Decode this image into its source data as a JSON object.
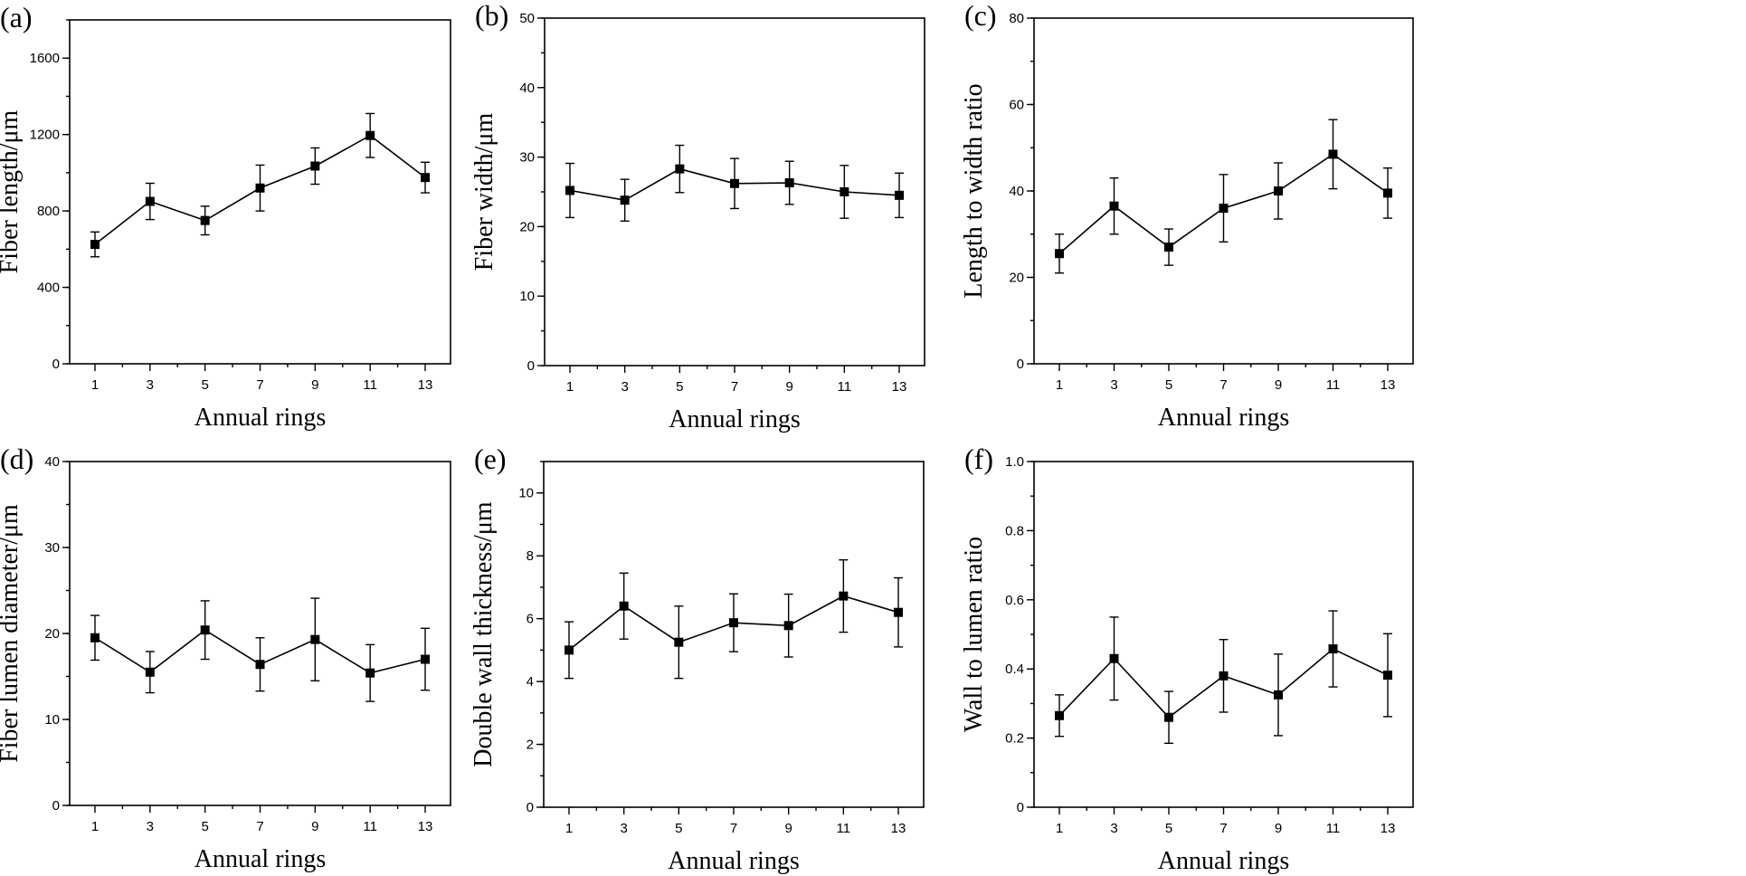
{
  "chart_data": [
    {
      "id": "a",
      "type": "line",
      "panel_label": "(a)",
      "title": "",
      "xlabel": "Annual rings",
      "ylabel": "Fiber length/μm",
      "categories": [
        "1",
        "3",
        "5",
        "7",
        "9",
        "11",
        "13"
      ],
      "ylim": [
        0,
        1800
      ],
      "yticks": [
        0,
        400,
        800,
        1200,
        1600
      ],
      "ymajor_labeled": [
        "0",
        "400",
        "800",
        "1200",
        "1600"
      ],
      "yminor_step": 200,
      "values": [
        625,
        850,
        750,
        920,
        1035,
        1195,
        975
      ],
      "errors": [
        65,
        95,
        75,
        120,
        95,
        115,
        80
      ],
      "grid": false
    },
    {
      "id": "b",
      "type": "line",
      "panel_label": "(b)",
      "title": "",
      "xlabel": "Annual rings",
      "ylabel": "Fiber width/μm",
      "categories": [
        "1",
        "3",
        "5",
        "7",
        "9",
        "11",
        "13"
      ],
      "ylim": [
        0,
        50
      ],
      "yticks": [
        0,
        10,
        20,
        30,
        40,
        50
      ],
      "ymajor_labeled": [
        "0",
        "10",
        "20",
        "30",
        "40",
        "50"
      ],
      "yminor_step": 5,
      "values": [
        25.2,
        23.8,
        28.3,
        26.2,
        26.3,
        25.0,
        24.5
      ],
      "errors": [
        3.9,
        3.0,
        3.4,
        3.6,
        3.1,
        3.8,
        3.2
      ],
      "grid": false
    },
    {
      "id": "c",
      "type": "line",
      "panel_label": "(c)",
      "title": "",
      "xlabel": "Annual rings",
      "ylabel": "Length to width ratio",
      "categories": [
        "1",
        "3",
        "5",
        "7",
        "9",
        "11",
        "13"
      ],
      "ylim": [
        0,
        80
      ],
      "yticks": [
        0,
        20,
        40,
        60,
        80
      ],
      "ymajor_labeled": [
        "0",
        "20",
        "40",
        "60",
        "80"
      ],
      "yminor_step": 10,
      "values": [
        25.5,
        36.5,
        27.0,
        36.0,
        40.0,
        48.5,
        39.5
      ],
      "errors": [
        4.5,
        6.5,
        4.2,
        7.8,
        6.5,
        8.0,
        5.8
      ],
      "grid": false
    },
    {
      "id": "d",
      "type": "line",
      "panel_label": "(d)",
      "title": "",
      "xlabel": "Annual rings",
      "ylabel": "Fiber lumen diameter/μm",
      "categories": [
        "1",
        "3",
        "5",
        "7",
        "9",
        "11",
        "13"
      ],
      "ylim": [
        0,
        40
      ],
      "yticks": [
        0,
        10,
        20,
        30,
        40
      ],
      "ymajor_labeled": [
        "0",
        "10",
        "20",
        "30",
        "40"
      ],
      "yminor_step": 5,
      "values": [
        19.5,
        15.5,
        20.4,
        16.4,
        19.3,
        15.4,
        17.0
      ],
      "errors": [
        2.6,
        2.4,
        3.4,
        3.1,
        4.8,
        3.3,
        3.6
      ],
      "grid": false
    },
    {
      "id": "e",
      "type": "line",
      "panel_label": "(e)",
      "title": "",
      "xlabel": "Annual rings",
      "ylabel": "Double wall thickness/μm",
      "categories": [
        "1",
        "3",
        "5",
        "7",
        "9",
        "11",
        "13"
      ],
      "ylim": [
        0,
        11
      ],
      "yticks": [
        0,
        2,
        4,
        6,
        8,
        10
      ],
      "ymajor_labeled": [
        "0",
        "2",
        "4",
        "6",
        "8",
        "10"
      ],
      "yminor_step": 1,
      "values": [
        5.0,
        6.4,
        5.25,
        5.87,
        5.78,
        6.72,
        6.2
      ],
      "errors": [
        0.9,
        1.05,
        1.15,
        0.92,
        1.0,
        1.15,
        1.1
      ],
      "grid": false
    },
    {
      "id": "f",
      "type": "line",
      "panel_label": "(f)",
      "title": "",
      "xlabel": "Annual rings",
      "ylabel": "Wall to lumen ratio",
      "categories": [
        "1",
        "3",
        "5",
        "7",
        "9",
        "11",
        "13"
      ],
      "ylim": [
        0,
        1.0
      ],
      "yticks": [
        0,
        0.2,
        0.4,
        0.6,
        0.8,
        1.0
      ],
      "ymajor_labeled": [
        "0",
        "0.2",
        "0.4",
        "0.6",
        "0.8",
        "1.0"
      ],
      "yminor_step": 0.1,
      "values": [
        0.265,
        0.43,
        0.26,
        0.38,
        0.325,
        0.458,
        0.382
      ],
      "errors": [
        0.06,
        0.12,
        0.075,
        0.105,
        0.118,
        0.11,
        0.12
      ],
      "grid": false
    }
  ]
}
